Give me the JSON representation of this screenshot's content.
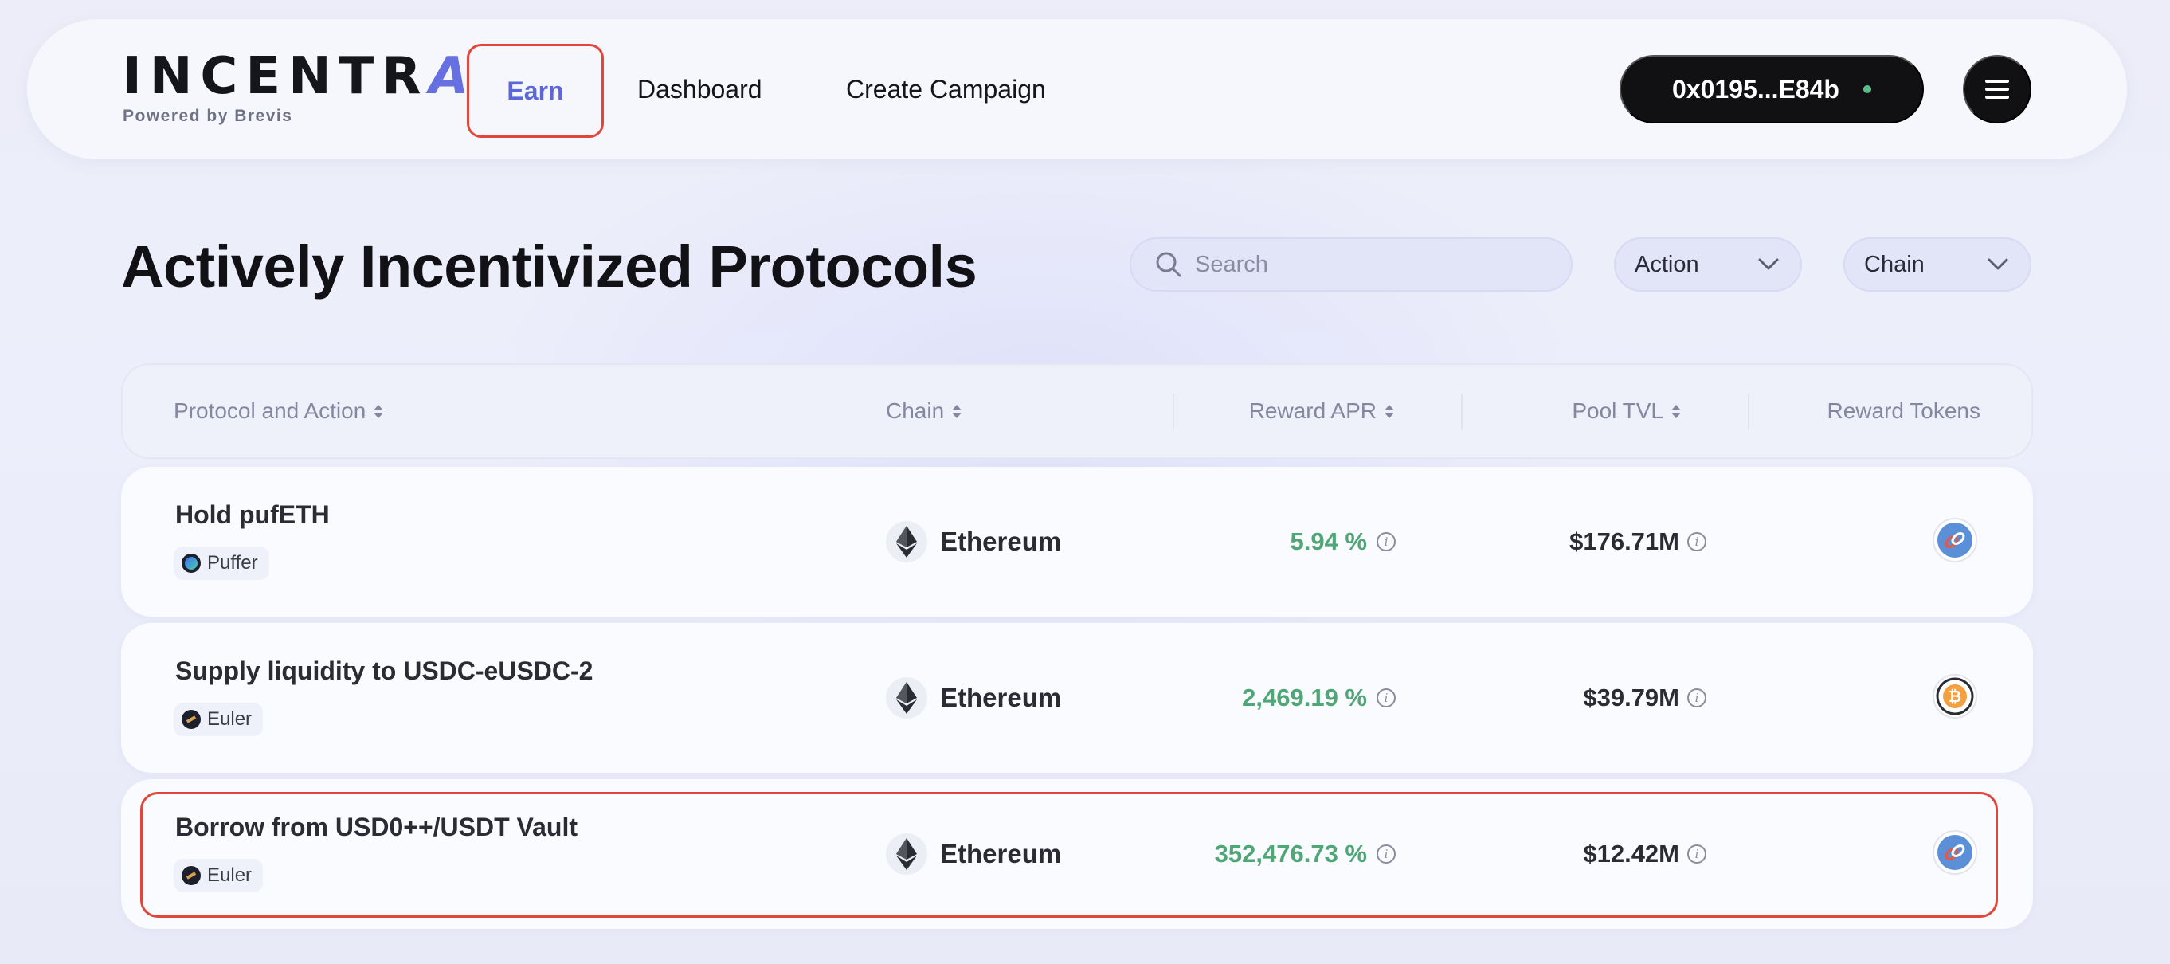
{
  "header": {
    "logo_text_main": "INCENTR",
    "logo_text_accent": "A",
    "logo_subtitle": "Powered by Brevis",
    "nav": {
      "earn": "Earn",
      "dashboard": "Dashboard",
      "create_campaign": "Create Campaign"
    },
    "wallet_address": "0x0195...E84b"
  },
  "page_title": "Actively Incentivized Protocols",
  "filters": {
    "search_placeholder": "Search",
    "action_label": "Action",
    "chain_label": "Chain"
  },
  "table": {
    "columns": {
      "protocol_action": "Protocol and Action",
      "chain": "Chain",
      "reward_apr": "Reward APR",
      "pool_tvl": "Pool TVL",
      "reward_tokens": "Reward Tokens"
    },
    "rows": [
      {
        "title": "Hold pufETH",
        "protocol": "Puffer",
        "chain": "Ethereum",
        "apr": "5.94 %",
        "tvl": "$176.71M",
        "reward_token_icon": "chainlink-token-icon"
      },
      {
        "title": "Supply liquidity to USDC-eUSDC-2",
        "protocol": "Euler",
        "chain": "Ethereum",
        "apr": "2,469.19 %",
        "tvl": "$39.79M",
        "reward_token_icon": "bitcoin-token-icon"
      },
      {
        "title": "Borrow from USD0++/USDT Vault",
        "protocol": "Euler",
        "chain": "Ethereum",
        "apr": "352,476.73 %",
        "tvl": "$12.42M",
        "reward_token_icon": "chainlink-token-icon"
      }
    ]
  },
  "colors": {
    "accent": "#5d67d8",
    "highlight": "#e2463a",
    "apr_green": "#4fa676",
    "dark": "#111114"
  }
}
